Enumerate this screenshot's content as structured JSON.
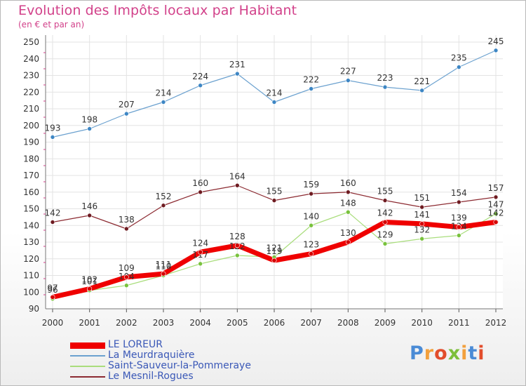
{
  "chart_data": {
    "type": "line",
    "title": "Evolution des Impôts locaux par Habitant",
    "subtitle": "(en € et par an)",
    "x": [
      "2000",
      "2001",
      "2002",
      "2003",
      "2004",
      "2005",
      "2006",
      "2007",
      "2008",
      "2009",
      "2010",
      "2011",
      "2012"
    ],
    "ylim": [
      90,
      250
    ],
    "yticks": [
      90,
      100,
      110,
      120,
      130,
      140,
      150,
      160,
      170,
      180,
      190,
      200,
      210,
      220,
      230,
      240,
      250
    ],
    "grid": true,
    "legend_position": "bottom-left",
    "series": [
      {
        "name": "La Meurdraquière",
        "color": "#6ba1cf",
        "marker": "#3d86c4",
        "width": 1.2,
        "values": [
          193,
          198,
          207,
          214,
          224,
          231,
          214,
          222,
          227,
          223,
          221,
          235,
          245
        ],
        "labels": true
      },
      {
        "name": "Saint-Sauveur-la-Pommeraye",
        "color": "#a9dd7c",
        "marker": "#79c23d",
        "width": 1.2,
        "values": [
          96,
          101,
          104,
          110,
          117,
          122,
          121,
          140,
          148,
          129,
          132,
          134,
          147
        ],
        "labels": true
      },
      {
        "name": "Le Mesnil-Rogues",
        "color": "#8c2a31",
        "marker": "#6e1b21",
        "width": 1.2,
        "values": [
          142,
          146,
          138,
          152,
          160,
          164,
          155,
          159,
          160,
          155,
          151,
          154,
          157
        ],
        "labels": true
      },
      {
        "name": "LE LOREUR",
        "color": "#ef0000",
        "marker": "#d40000",
        "width": 7,
        "values": [
          97,
          102,
          109,
          111,
          124,
          128,
          119,
          123,
          130,
          142,
          141,
          139,
          142
        ],
        "labels": true
      }
    ],
    "legend_order": [
      3,
      0,
      1,
      2
    ]
  },
  "brand": {
    "logo_text": "Proxiti",
    "colors": [
      "#4a8bd6",
      "#f2a03d",
      "#e24d2c",
      "#7dbf3a",
      "#f2a03d",
      "#4a8bd6",
      "#e24d2c"
    ]
  }
}
